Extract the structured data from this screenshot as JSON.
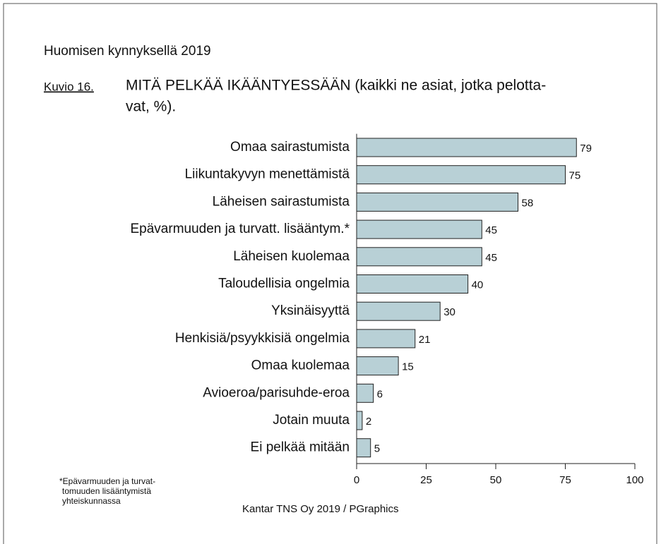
{
  "chart_data": {
    "type": "bar",
    "orientation": "horizontal",
    "header": "Huomisen kynnyksellä 2019",
    "figure_label": "Kuvio 16.",
    "title": [
      "MITÄ PELKÄÄ IKÄÄNTYESSÄÄN (kaikki ne asiat, jotka pelotta-",
      "vat, %)."
    ],
    "categories": [
      "Omaa sairastumista",
      "Liikuntakyvyn menettämistä",
      "Läheisen sairastumista",
      "Epävarmuuden ja turvatt. lisääntym.*",
      "Läheisen kuolemaa",
      "Taloudellisia ongelmia",
      "Yksinäisyyttä",
      "Henkisiä/psyykkisiä ongelmia",
      "Omaa kuolemaa",
      "Avioeroa/parisuhde-eroa",
      "Jotain muuta",
      "Ei pelkää mitään"
    ],
    "values": [
      79,
      75,
      58,
      45,
      45,
      40,
      30,
      21,
      15,
      6,
      2,
      5
    ],
    "color": "#b8d0d6",
    "xlim": [
      0,
      100
    ],
    "xticks": [
      0,
      25,
      50,
      75,
      100
    ],
    "footnote": [
      "*Epävarmuuden ja turvat-",
      "tomuuden lisääntymistä",
      "yhteiskunnassa"
    ],
    "source": "Kantar TNS Oy 2019 / PGraphics"
  }
}
